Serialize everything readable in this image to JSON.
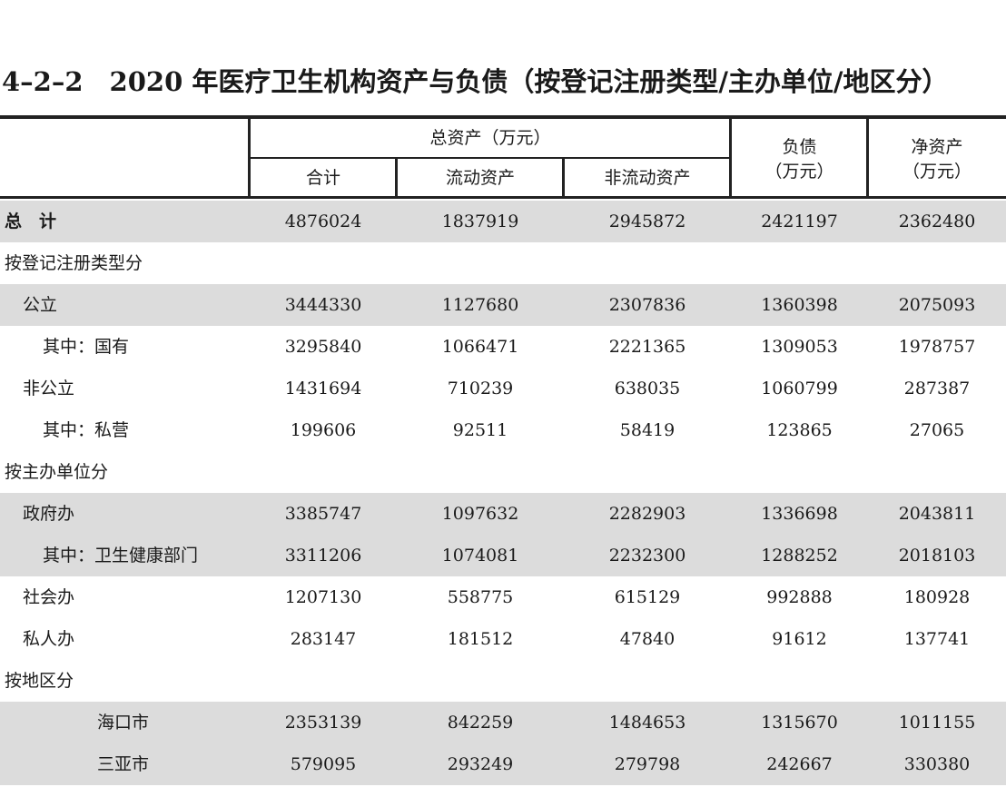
{
  "title": "4–2–2　2020 年医疗卫生机构资产与负债（按登记注册类型/主办单位/地区分）",
  "header": {
    "total_assets": "总资产（万元）",
    "subtotal": "合计",
    "current_assets": "流动资产",
    "non_current_assets": "非流动资产",
    "liabilities_line1": "负债",
    "liabilities_line2": "（万元）",
    "net_assets_line1": "净资产",
    "net_assets_line2": "（万元）"
  },
  "rows": [
    {
      "label": "总　计",
      "values": [
        "4876024",
        "1837919",
        "2945872",
        "2421197",
        "2362480"
      ]
    },
    {
      "label": "按登记注册类型分",
      "values": [
        "",
        "",
        "",
        "",
        ""
      ]
    },
    {
      "label": "公立",
      "values": [
        "3444330",
        "1127680",
        "2307836",
        "1360398",
        "2075093"
      ]
    },
    {
      "label": "其中：国有",
      "values": [
        "3295840",
        "1066471",
        "2221365",
        "1309053",
        "1978757"
      ]
    },
    {
      "label": "非公立",
      "values": [
        "1431694",
        "710239",
        "638035",
        "1060799",
        "287387"
      ]
    },
    {
      "label": "其中：私营",
      "values": [
        "199606",
        "92511",
        "58419",
        "123865",
        "27065"
      ]
    },
    {
      "label": "按主办单位分",
      "values": [
        "",
        "",
        "",
        "",
        ""
      ]
    },
    {
      "label": "政府办",
      "values": [
        "3385747",
        "1097632",
        "2282903",
        "1336698",
        "2043811"
      ]
    },
    {
      "label": "其中：卫生健康部门",
      "values": [
        "3311206",
        "1074081",
        "2232300",
        "1288252",
        "2018103"
      ]
    },
    {
      "label": "社会办",
      "values": [
        "1207130",
        "558775",
        "615129",
        "992888",
        "180928"
      ]
    },
    {
      "label": "私人办",
      "values": [
        "283147",
        "181512",
        "47840",
        "91612",
        "137741"
      ]
    },
    {
      "label": "按地区分",
      "values": [
        "",
        "",
        "",
        "",
        ""
      ]
    },
    {
      "label": "海口市",
      "values": [
        "2353139",
        "842259",
        "1484653",
        "1315670",
        "1011155"
      ]
    },
    {
      "label": "三亚市",
      "values": [
        "579095",
        "293249",
        "279798",
        "242667",
        "330380"
      ]
    }
  ]
}
